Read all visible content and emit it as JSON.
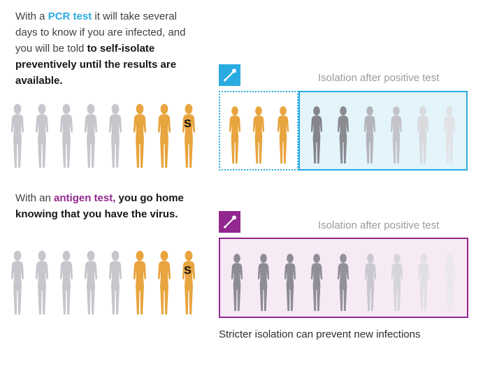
{
  "colors": {
    "blue": "#29ABE2",
    "blue_box_fill": "#E3F4FB",
    "purple": "#92278F",
    "purple_box_fill": "#F6EAF5",
    "label_gray": "#9B9B9B",
    "person_gray": "#C7C6CC",
    "person_orange": "#E8A43E"
  },
  "infected_marker": "S",
  "pcr_section": {
    "text": {
      "part1": "With a ",
      "highlight": "PCR test",
      "part2": " it will take several days to know if you are infected, and you will be told ",
      "part3_bold": "to self-isolate preventively until the results are available."
    },
    "swab_icon": "swab-icon",
    "isolation_label": "Isolation after positive test",
    "people_before": [
      {
        "color": "#C7C6CC"
      },
      {
        "color": "#C7C6CC"
      },
      {
        "color": "#C7C6CC"
      },
      {
        "color": "#C7C6CC"
      },
      {
        "color": "#C7C6CC"
      },
      {
        "color": "#E8A43E"
      },
      {
        "color": "#E8A43E"
      },
      {
        "color": "#E8A43E",
        "marker": "S"
      }
    ],
    "people_preventive_isolation": [
      {
        "color": "#E8A43E"
      },
      {
        "color": "#E8A43E"
      },
      {
        "color": "#E8A43E"
      }
    ],
    "people_isolated": [
      {
        "color": "#85848C"
      },
      {
        "color": "#8A8A91"
      },
      {
        "color": "#B5B4BB"
      },
      {
        "color": "#C4C3CA"
      },
      {
        "color": "#D8D8DD"
      },
      {
        "color": "#E2E2E6"
      }
    ]
  },
  "antigen_section": {
    "text": {
      "part1": "With an ",
      "highlight": "antigen test,",
      "part3_bold": " you go home knowing that you have the virus."
    },
    "swab_icon": "swab-icon",
    "isolation_label": "Isolation after positive test",
    "people_before": [
      {
        "color": "#C7C6CC"
      },
      {
        "color": "#C7C6CC"
      },
      {
        "color": "#C7C6CC"
      },
      {
        "color": "#C7C6CC"
      },
      {
        "color": "#C7C6CC"
      },
      {
        "color": "#E8A43E"
      },
      {
        "color": "#E8A43E"
      },
      {
        "color": "#E8A43E",
        "marker": "S"
      }
    ],
    "people_isolated": [
      {
        "color": "#8D8C94"
      },
      {
        "color": "#8D8C94"
      },
      {
        "color": "#8D8C94"
      },
      {
        "color": "#8F8E96"
      },
      {
        "color": "#92919A"
      },
      {
        "color": "#C9C7CF"
      },
      {
        "color": "#D6D4DB"
      },
      {
        "color": "#E1DFE5"
      },
      {
        "color": "#EAE8EE"
      }
    ]
  },
  "caption": "Stricter isolation can prevent new infections"
}
